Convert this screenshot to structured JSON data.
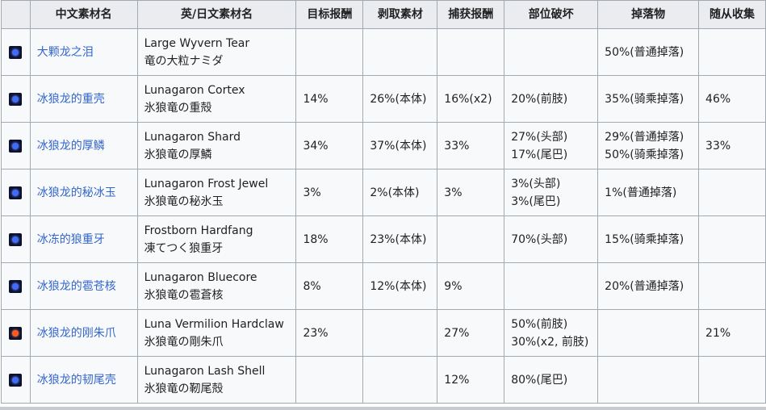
{
  "headers": [
    "",
    "中文素材名",
    "英/日文素材名",
    "目标报酬",
    "剥取素材",
    "捕获报酬",
    "部位破坏",
    "掉落物",
    "随从收集"
  ],
  "rows": [
    {
      "icon": "blue-material-icon",
      "zh": "大颗龙之泪",
      "en": "Large Wyvern Tear",
      "ja": "竜の大粒ナミダ",
      "target": "",
      "carve": "",
      "capture": "",
      "break1": "",
      "break2": "",
      "drop1": "50%(普通掉落)",
      "drop2": "",
      "buddy": ""
    },
    {
      "icon": "blue-material-icon",
      "zh": "冰狼龙的重壳",
      "en": "Lunagaron Cortex",
      "ja": "氷狼竜の重殻",
      "target": "14%",
      "carve": "26%(本体)",
      "capture": "16%(x2)",
      "break1": "20%(前肢)",
      "break2": "",
      "drop1": "35%(骑乘掉落)",
      "drop2": "",
      "buddy": "46%"
    },
    {
      "icon": "blue-material-icon",
      "zh": "冰狼龙的厚鳞",
      "en": "Lunagaron Shard",
      "ja": "氷狼竜の厚鱗",
      "target": "34%",
      "carve": "37%(本体)",
      "capture": "33%",
      "break1": "27%(头部)",
      "break2": "17%(尾巴)",
      "drop1": "29%(普通掉落)",
      "drop2": "50%(骑乘掉落)",
      "buddy": "33%"
    },
    {
      "icon": "blue-material-icon",
      "zh": "冰狼龙的秘冰玉",
      "en": "Lunagaron Frost Jewel",
      "ja": "氷狼竜の秘氷玉",
      "target": "3%",
      "carve": "2%(本体)",
      "capture": "3%",
      "break1": "3%(头部)",
      "break2": "3%(尾巴)",
      "drop1": "1%(普通掉落)",
      "drop2": "",
      "buddy": ""
    },
    {
      "icon": "blue-material-icon",
      "zh": "冰冻的狼重牙",
      "en": "Frostborn Hardfang",
      "ja": "凍てつく狼重牙",
      "target": "18%",
      "carve": "23%(本体)",
      "capture": "",
      "break1": "70%(头部)",
      "break2": "",
      "drop1": "15%(骑乘掉落)",
      "drop2": "",
      "buddy": ""
    },
    {
      "icon": "blue-material-icon",
      "zh": "冰狼龙的雹苍核",
      "en": "Lunagaron Bluecore",
      "ja": "氷狼竜の雹蒼核",
      "target": "8%",
      "carve": "12%(本体)",
      "capture": "9%",
      "break1": "",
      "break2": "",
      "drop1": "20%(普通掉落)",
      "drop2": "",
      "buddy": ""
    },
    {
      "icon": "red-material-icon",
      "zh": "冰狼龙的刚朱爪",
      "en": "Luna Vermilion Hardclaw",
      "ja": "氷狼竜の剛朱爪",
      "target": "23%",
      "carve": "",
      "capture": "27%",
      "break1": "50%(前肢)",
      "break2": "30%(x2, 前肢)",
      "drop1": "",
      "drop2": "",
      "buddy": "21%"
    },
    {
      "icon": "blue-material-icon",
      "zh": "冰狼龙的韧尾壳",
      "en": "Lunagaron Lash Shell",
      "ja": "氷狼竜の靭尾殻",
      "target": "",
      "carve": "",
      "capture": "12%",
      "break1": "80%(尾巴)",
      "break2": "",
      "drop1": "",
      "drop2": "",
      "buddy": ""
    }
  ]
}
